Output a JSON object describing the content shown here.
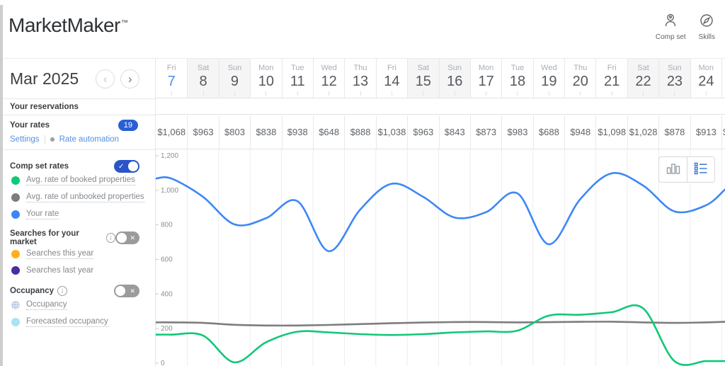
{
  "header": {
    "logo": "MarketMaker",
    "logo_tm": "™",
    "comp_set_action": "Comp set",
    "skills_action": "Skills"
  },
  "month_nav": {
    "label": "Mar 2025"
  },
  "sidebar": {
    "reservations_label": "Your reservations",
    "rates_label": "Your rates",
    "rates_badge": "19",
    "settings_link": "Settings",
    "rate_automation_link": "Rate automation",
    "comp_set": {
      "label": "Comp set rates",
      "toggle_state": "on",
      "legend": [
        {
          "label": "Avg. rate of booked properties",
          "color": "#10c877"
        },
        {
          "label": "Avg. rate of unbooked properties",
          "color": "#7d7d7d"
        },
        {
          "label": "Your rate",
          "color": "#3d87f5"
        }
      ]
    },
    "searches": {
      "label": "Searches for your market",
      "toggle_state": "off",
      "legend": [
        {
          "label": "Searches this year",
          "color": "#ffaf1e"
        },
        {
          "label": "Searches last year",
          "color": "#46309c"
        }
      ]
    },
    "occupancy": {
      "label": "Occupancy",
      "toggle_state": "off",
      "legend": [
        {
          "label": "Occupancy",
          "color": "#c6d8ee"
        },
        {
          "label": "Forecasted occupancy",
          "color": "#a9e3f5"
        }
      ]
    }
  },
  "calendar": {
    "days": [
      {
        "dow": "Fri",
        "date": "7",
        "weekend": false,
        "today": true
      },
      {
        "dow": "Sat",
        "date": "8",
        "weekend": true
      },
      {
        "dow": "Sun",
        "date": "9",
        "weekend": true
      },
      {
        "dow": "Mon",
        "date": "10",
        "weekend": false
      },
      {
        "dow": "Tue",
        "date": "11",
        "weekend": false
      },
      {
        "dow": "Wed",
        "date": "12",
        "weekend": false
      },
      {
        "dow": "Thu",
        "date": "13",
        "weekend": false
      },
      {
        "dow": "Fri",
        "date": "14",
        "weekend": false
      },
      {
        "dow": "Sat",
        "date": "15",
        "weekend": true
      },
      {
        "dow": "Sun",
        "date": "16",
        "weekend": true
      },
      {
        "dow": "Mon",
        "date": "17",
        "weekend": false
      },
      {
        "dow": "Tue",
        "date": "18",
        "weekend": false
      },
      {
        "dow": "Wed",
        "date": "19",
        "weekend": false
      },
      {
        "dow": "Thu",
        "date": "20",
        "weekend": false
      },
      {
        "dow": "Fri",
        "date": "21",
        "weekend": false
      },
      {
        "dow": "Sat",
        "date": "22",
        "weekend": true
      },
      {
        "dow": "Sun",
        "date": "23",
        "weekend": true
      },
      {
        "dow": "Mon",
        "date": "24",
        "weekend": false
      }
    ],
    "prices": [
      "$1,068",
      "$963",
      "$803",
      "$838",
      "$938",
      "$648",
      "$888",
      "$1,038",
      "$963",
      "$843",
      "$873",
      "$983",
      "$688",
      "$948",
      "$1,098",
      "$1,028",
      "$878",
      "$913"
    ],
    "partial_price": "$"
  },
  "chart_data": {
    "type": "line",
    "categories": [
      "Mar 7",
      "Mar 8",
      "Mar 9",
      "Mar 10",
      "Mar 11",
      "Mar 12",
      "Mar 13",
      "Mar 14",
      "Mar 15",
      "Mar 16",
      "Mar 17",
      "Mar 18",
      "Mar 19",
      "Mar 20",
      "Mar 21",
      "Mar 22",
      "Mar 23",
      "Mar 24"
    ],
    "ylim": [
      0,
      1200
    ],
    "yticks": [
      0,
      200,
      400,
      600,
      800,
      1000,
      1200
    ],
    "ytick_labels": [
      "0",
      "200",
      "400",
      "600",
      "800",
      "1,000",
      "1,200"
    ],
    "grid": "vertical-day-columns",
    "legend_position": "left-sidebar",
    "series": [
      {
        "name": "Avg. rate of unbooked properties",
        "color": "#7d7d7d",
        "values": [
          236,
          233,
          222,
          218,
          218,
          221,
          226,
          231,
          235,
          238,
          238,
          236,
          237,
          239,
          240,
          236,
          233,
          236
        ],
        "edge": 239
      },
      {
        "name": "Avg. rate of booked properties",
        "color": "#10c877",
        "values": [
          165,
          160,
          5,
          120,
          182,
          178,
          168,
          163,
          168,
          178,
          184,
          188,
          275,
          280,
          295,
          318,
          12,
          12
        ],
        "edge": 12
      },
      {
        "name": "Your rate",
        "color": "#3d87f5",
        "values": [
          1068,
          963,
          803,
          838,
          938,
          648,
          888,
          1038,
          963,
          843,
          873,
          983,
          688,
          948,
          1098,
          1028,
          878,
          913
        ],
        "edge": 1005
      }
    ]
  },
  "icons": {
    "check": "✓",
    "cross": "✕",
    "prev": "‹",
    "next": "›",
    "info": "i"
  }
}
